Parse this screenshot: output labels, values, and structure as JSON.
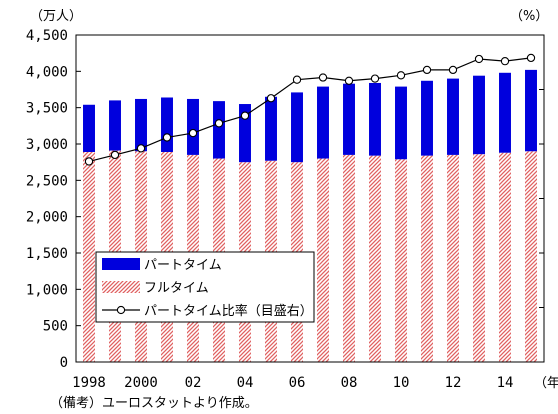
{
  "chart_data": {
    "type": "bar",
    "title": "",
    "y_left_unit": "（万人）",
    "y_right_unit": "（%）",
    "x_unit": "（年）",
    "ylim": [
      0,
      4500
    ],
    "y_ticks": [
      "0",
      "500",
      "1,000",
      "1,500",
      "2,000",
      "2,500",
      "3,000",
      "3,500",
      "4,000",
      "4,500"
    ],
    "y_tick_values": [
      0,
      500,
      1000,
      1500,
      2000,
      2500,
      3000,
      3500,
      4000,
      4500
    ],
    "years": [
      1998,
      1999,
      2000,
      2001,
      2002,
      2003,
      2004,
      2005,
      2006,
      2007,
      2008,
      2009,
      2010,
      2011,
      2012,
      2013,
      2014,
      2015
    ],
    "x_tick_labels": [
      {
        "year": 1998,
        "label": "1998"
      },
      {
        "year": 2000,
        "label": "2000"
      },
      {
        "year": 2002,
        "label": "02"
      },
      {
        "year": 2004,
        "label": "04"
      },
      {
        "year": 2006,
        "label": "06"
      },
      {
        "year": 2008,
        "label": "08"
      },
      {
        "year": 2010,
        "label": "10"
      },
      {
        "year": 2012,
        "label": "12"
      },
      {
        "year": 2014,
        "label": "14"
      }
    ],
    "series": [
      {
        "name": "フルタイム",
        "color": "#e06060",
        "pattern": "diagonal-hatch",
        "values": [
          2890,
          2910,
          2900,
          2890,
          2850,
          2800,
          2750,
          2770,
          2750,
          2800,
          2850,
          2840,
          2790,
          2840,
          2850,
          2860,
          2880,
          2900
        ]
      },
      {
        "name": "パートタイム",
        "color": "#0000dd",
        "pattern": "solid",
        "values": [
          650,
          690,
          720,
          750,
          770,
          790,
          800,
          880,
          960,
          990,
          980,
          1000,
          1000,
          1030,
          1050,
          1080,
          1100,
          1120
        ]
      },
      {
        "name": "パートタイム比率（目盛右）",
        "type": "line",
        "axis": "right",
        "color": "#000000",
        "marker": "open-circle",
        "values": [
          18.4,
          19.0,
          19.6,
          20.6,
          21.0,
          21.9,
          22.6,
          24.2,
          25.9,
          26.1,
          25.8,
          26.0,
          26.3,
          26.8,
          26.8,
          27.8,
          27.6,
          27.9
        ]
      }
    ],
    "right_axis_range": [
      0,
      30
    ],
    "legend": {
      "position": "bottom-left",
      "entries": [
        "パートタイム",
        "フルタイム",
        "パートタイム比率（目盛右）"
      ]
    }
  },
  "footnote": "（備考）ユーロスタットより作成。"
}
